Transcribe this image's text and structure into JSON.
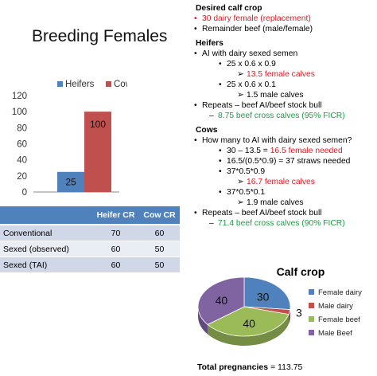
{
  "slide": {
    "title": "Breeding Females"
  },
  "chart_data": [
    {
      "type": "bar",
      "categories": [
        ""
      ],
      "series": [
        {
          "name": "Heifers",
          "values": [
            25
          ],
          "color": "#4f81bd"
        },
        {
          "name": "Cows",
          "values": [
            100
          ],
          "color": "#c0504d"
        }
      ],
      "ylim": [
        0,
        120
      ],
      "yticks": [
        "0",
        "20",
        "40",
        "60",
        "80",
        "100",
        "120"
      ],
      "data_labels": [
        "25",
        "100"
      ],
      "legend_position": "top"
    },
    {
      "type": "pie",
      "title": "Calf crop",
      "labels": [
        "Female dairy",
        "Male dairy",
        "Female beef",
        "Male Beef"
      ],
      "values": [
        30,
        3,
        40,
        40
      ],
      "data_labels": [
        "30",
        "3",
        "40",
        "40"
      ],
      "colors": [
        "#4f81bd",
        "#c0504d",
        "#9bbb59",
        "#8064a2"
      ],
      "legend_position": "right"
    }
  ],
  "table": {
    "headers": [
      "",
      "Heifer CR",
      "Cow CR"
    ],
    "rows": [
      {
        "label": "Conventional",
        "heifer": "70",
        "cow": "60"
      },
      {
        "label": "Sexed (observed)",
        "heifer": "60",
        "cow": "50"
      },
      {
        "label": "Sexed (TAI)",
        "heifer": "60",
        "cow": "50"
      }
    ]
  },
  "notes": {
    "desired": {
      "heading": "Desired calf crop",
      "items": [
        "30 dairy female (replacement)",
        "Remainder beef (male/female)"
      ]
    },
    "heifers": {
      "heading": "Heifers",
      "ai": "AI with dairy sexed semen",
      "calc1": "25 x 0.6 x 0.9",
      "res1": "13.5 female calves",
      "calc2": "25 x 0.6 x 0.1",
      "res2": "1.5 male calves",
      "repeats": "Repeats – beef AI/beef stock bull",
      "cross": "8.75 beef cross calves (95% FICR)"
    },
    "cows": {
      "heading": "Cows",
      "question": "How many to AI with dairy sexed semen?",
      "needed_pre": "30 – 13.5 = ",
      "needed_val": "16.5 female needed",
      "straws": "16.5/(0.5*0.9) = 37 straws needed",
      "calc1": "37*0.5*0.9",
      "res1": "16.7 female calves",
      "calc2": "37*0.5*0.1",
      "res2": "1.9 male calves",
      "repeats": "Repeats – beef AI/beef stock bull",
      "cross": "71.4 beef cross calves (90% FICR)"
    }
  },
  "footer": {
    "label": "Total pregnancies",
    "value": " = 113.75"
  }
}
